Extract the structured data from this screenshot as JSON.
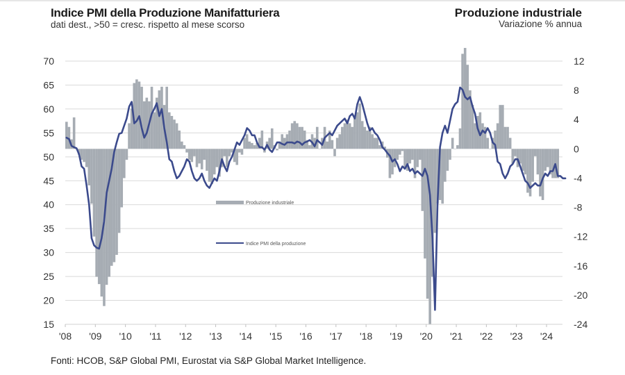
{
  "header": {
    "title_left": "Indice PMI della Produzione Manifatturiera",
    "subtitle_left": "dati dest., >50 = cresc. rispetto al mese scorso",
    "title_right": "Produzione industriale",
    "subtitle_right": "Variazione % annua"
  },
  "footer": {
    "source": "Fonti: HCOB, S&P Global PMI, Eurostat via S&P Global Market Intelligence."
  },
  "colors": {
    "pmi_line": "#3b4a8c",
    "production_bars": "#a6acb3",
    "gridline": "#d9d9d9"
  },
  "chart_data": {
    "type": "bar+line",
    "title": "Indice PMI della Produzione Manifatturiera",
    "subtitle": "dati dest., >50 = cresc. rispetto al mese scorso",
    "right_title": "Produzione industriale",
    "right_subtitle": "Variazione % annua",
    "x_start": "2008-01",
    "x_frequency": "monthly",
    "x_tick_labels": [
      "'08",
      "'09",
      "'10",
      "'11",
      "'12",
      "'13",
      "'14",
      "'15",
      "'16",
      "'17",
      "'18",
      "'19",
      "'20",
      "'21",
      "'22",
      "'23",
      "'24"
    ],
    "y_left": {
      "label": "Indice PMI",
      "range": [
        15,
        70
      ],
      "ticks": [
        70,
        65,
        60,
        55,
        50,
        45,
        40,
        35,
        30,
        25,
        20,
        15
      ]
    },
    "y_right": {
      "label": "Variazione % annua",
      "range": [
        -24,
        12
      ],
      "ticks": [
        12,
        8,
        4,
        0,
        -4,
        -8,
        -12,
        -16,
        -20,
        -24
      ]
    },
    "grid": true,
    "legend": [
      {
        "name": "Produzione industriale",
        "type": "bar",
        "axis": "right"
      },
      {
        "name": "Indice PMI della produzione",
        "type": "line",
        "axis": "left"
      }
    ],
    "legend_placement": "center-left",
    "series": [
      {
        "name": "Produzione industriale",
        "axis": "right",
        "type": "bar",
        "values": [
          3.7,
          3.0,
          1.3,
          4.3,
          0.0,
          -0.8,
          -1.5,
          -1.8,
          -2.5,
          -5.0,
          -7.5,
          -12.0,
          -17.5,
          -18.5,
          -20.2,
          -21.5,
          -18.6,
          -17.5,
          -16.0,
          -15.5,
          -14.5,
          -11.5,
          -8.0,
          -4.0,
          -1.5,
          3.5,
          5.5,
          9.0,
          9.5,
          9.2,
          8.5,
          6.5,
          7.0,
          6.5,
          8.5,
          5.0,
          7.0,
          8.0,
          8.5,
          6.0,
          8.5,
          5.0,
          4.5,
          4.0,
          3.5,
          2.5,
          1.0,
          0.5,
          -0.5,
          -1.5,
          -1.8,
          -1.0,
          -2.5,
          -2.0,
          -2.8,
          -1.5,
          -3.0,
          -4.5,
          -4.8,
          -3.5,
          -2.5,
          -3.8,
          -2.5,
          -1.0,
          -2.5,
          -1.0,
          -0.5,
          -1.8,
          -2.2,
          -0.5,
          -0.8,
          1.5,
          2.0,
          1.0,
          0.8,
          0.5,
          0.8,
          1.5,
          2.5,
          -0.5,
          1.0,
          1.5,
          2.8,
          0.5,
          -0.2,
          1.0,
          2.0,
          1.5,
          2.0,
          2.5,
          3.5,
          3.8,
          3.5,
          3.0,
          3.0,
          2.5,
          1.2,
          0.5,
          2.0,
          1.5,
          3.0,
          0.0,
          1.5,
          3.0,
          1.0,
          2.5,
          1.2,
          -1.0,
          1.5,
          2.0,
          3.0,
          3.5,
          4.0,
          3.5,
          3.0,
          4.5,
          5.0,
          6.2,
          3.8,
          3.0,
          2.5,
          3.0,
          2.0,
          1.5,
          1.5,
          0.5,
          1.0,
          0.3,
          -1.2,
          -4.0,
          -3.5,
          -2.5,
          -1.5,
          -0.8,
          -0.3,
          -2.5,
          -3.0,
          -2.0,
          -1.5,
          -4.0,
          -2.5,
          -1.5,
          -8.5,
          -15.0,
          -20.5,
          -24.0,
          -17.5,
          -11.5,
          -7.5,
          -7.0,
          -7.5,
          -4.5,
          -3.0,
          -1.5,
          1.5,
          0.0,
          0.5,
          2.8,
          13.0,
          13.8,
          11.5,
          8.0,
          6.0,
          3.5,
          4.5,
          5.0,
          3.5,
          3.0,
          1.5,
          0.0,
          1.5,
          2.5,
          3.5,
          6.0,
          6.0,
          3.0,
          3.0,
          1.5,
          -2.0,
          -1.0,
          -2.5,
          -2.0,
          -3.0,
          -3.5,
          -6.0,
          -6.5,
          -4.5,
          -1.0,
          -3.5,
          -6.5,
          -7.0,
          -3.0,
          -2.5,
          -3.5,
          -4.0,
          -4.0,
          -4.0
        ]
      },
      {
        "name": "Indice PMI della produzione",
        "axis": "left",
        "type": "line",
        "values": [
          54.0,
          53.7,
          52.3,
          52.0,
          51.8,
          50.5,
          48.0,
          47.5,
          44.0,
          40.0,
          33.0,
          31.5,
          31.0,
          30.8,
          33.0,
          36.5,
          42.5,
          45.0,
          47.5,
          51.0,
          53.0,
          54.8,
          55.0,
          56.5,
          58.0,
          60.5,
          61.5,
          57.0,
          57.5,
          58.5,
          56.0,
          54.0,
          55.0,
          57.0,
          59.0,
          60.0,
          61.2,
          58.5,
          60.0,
          56.0,
          53.0,
          49.5,
          49.0,
          47.0,
          45.5,
          46.0,
          47.0,
          48.0,
          49.5,
          49.0,
          47.0,
          45.5,
          45.0,
          45.5,
          46.5,
          45.0,
          44.0,
          43.5,
          44.5,
          45.5,
          45.0,
          47.0,
          49.5,
          48.0,
          47.0,
          49.0,
          50.0,
          51.5,
          53.0,
          52.5,
          53.5,
          54.5,
          56.0,
          55.5,
          54.5,
          54.5,
          53.0,
          52.0,
          52.0,
          51.5,
          52.5,
          51.5,
          51.0,
          52.0,
          53.0,
          53.0,
          52.7,
          52.5,
          53.0,
          53.0,
          53.0,
          52.8,
          53.2,
          53.0,
          52.5,
          53.0,
          53.2,
          53.5,
          53.0,
          52.2,
          53.5,
          53.0,
          52.5,
          54.0,
          54.5,
          55.0,
          54.5,
          55.5,
          56.5,
          57.0,
          57.5,
          58.0,
          57.0,
          58.5,
          59.0,
          58.0,
          61.0,
          62.5,
          61.0,
          59.0,
          57.0,
          55.5,
          56.0,
          55.0,
          54.5,
          53.5,
          52.0,
          51.5,
          50.8,
          50.2,
          49.0,
          49.5,
          48.5,
          47.0,
          48.0,
          47.5,
          48.5,
          47.0,
          47.5,
          46.5,
          47.0,
          46.5,
          46.0,
          47.5,
          46.0,
          42.0,
          33.0,
          18.0,
          40.0,
          52.0,
          55.0,
          56.5,
          55.0,
          57.5,
          60.0,
          61.0,
          61.5,
          64.5,
          64.0,
          62.5,
          62.0,
          62.5,
          60.5,
          59.0,
          56.0,
          54.5,
          55.5,
          55.0,
          56.0,
          55.0,
          53.0,
          52.5,
          49.0,
          48.5,
          46.5,
          45.5,
          46.5,
          48.0,
          48.5,
          49.5,
          49.5,
          48.0,
          46.5,
          45.0,
          44.5,
          43.5,
          44.0,
          44.5,
          44.0,
          44.0,
          45.5,
          46.5,
          46.0,
          47.0,
          47.0,
          48.5,
          46.0,
          46.0,
          45.5,
          45.5
        ]
      }
    ]
  }
}
